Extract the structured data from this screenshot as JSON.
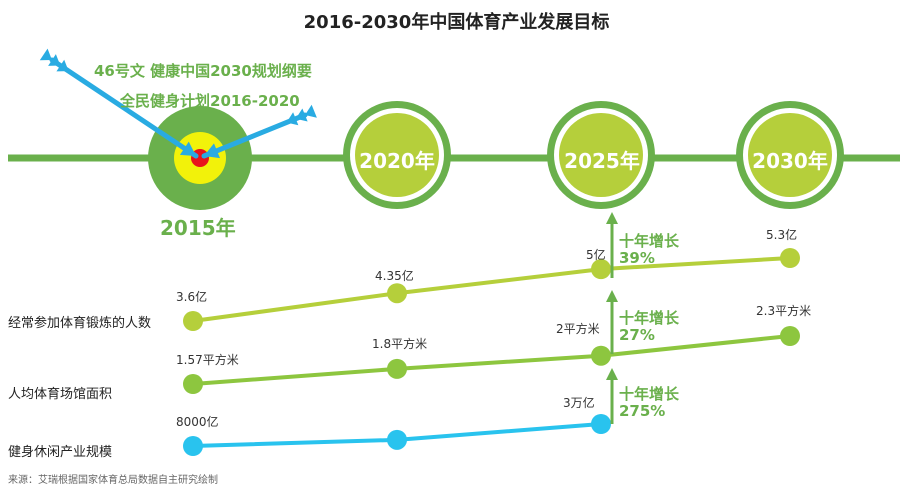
{
  "title": "2016-2030年中国体育产业发展目标",
  "annotations": {
    "policy_line1": "46号文    健康中国2030规划纲要",
    "policy_line2": "全民健身计划2016-2020"
  },
  "milestones": [
    "2015年",
    "2020年",
    "2025年",
    "2030年"
  ],
  "colors": {
    "timeline": "#6ab04c",
    "row1": "#b5cf3b",
    "row2": "#8dc63f",
    "row3": "#29c3ee",
    "arrow": "#29abe2",
    "milestone_ring": "#6ab04c",
    "milestone_fill": "#b5cf3b",
    "target_yellow": "#f2f20a",
    "target_red": "#e8141c"
  },
  "growth": [
    {
      "label": "十年增长",
      "value": "39%"
    },
    {
      "label": "十年增长",
      "value": "27%"
    },
    {
      "label": "十年增长",
      "value": "275%"
    }
  ],
  "chart_data": {
    "type": "line",
    "x": [
      "2015",
      "2020",
      "2025",
      "2030"
    ],
    "series": [
      {
        "name": "经常参加体育锻炼的人数",
        "values": [
          3.6,
          4.35,
          5,
          5.3
        ],
        "labels": [
          "3.6亿",
          "4.35亿",
          "5亿",
          "5.3亿"
        ]
      },
      {
        "name": "人均体育场馆面积",
        "values": [
          1.57,
          1.8,
          2,
          2.3
        ],
        "labels": [
          "1.57平方米",
          "1.8平方米",
          "2平方米",
          "2.3平方米"
        ]
      },
      {
        "name": "健身休闲产业规模",
        "values": [
          8000,
          null,
          30000,
          null
        ],
        "labels": [
          "8000亿",
          null,
          "3万亿",
          null
        ]
      }
    ]
  },
  "source": "来源：艾瑞根据国家体育总局数据自主研究绘制"
}
